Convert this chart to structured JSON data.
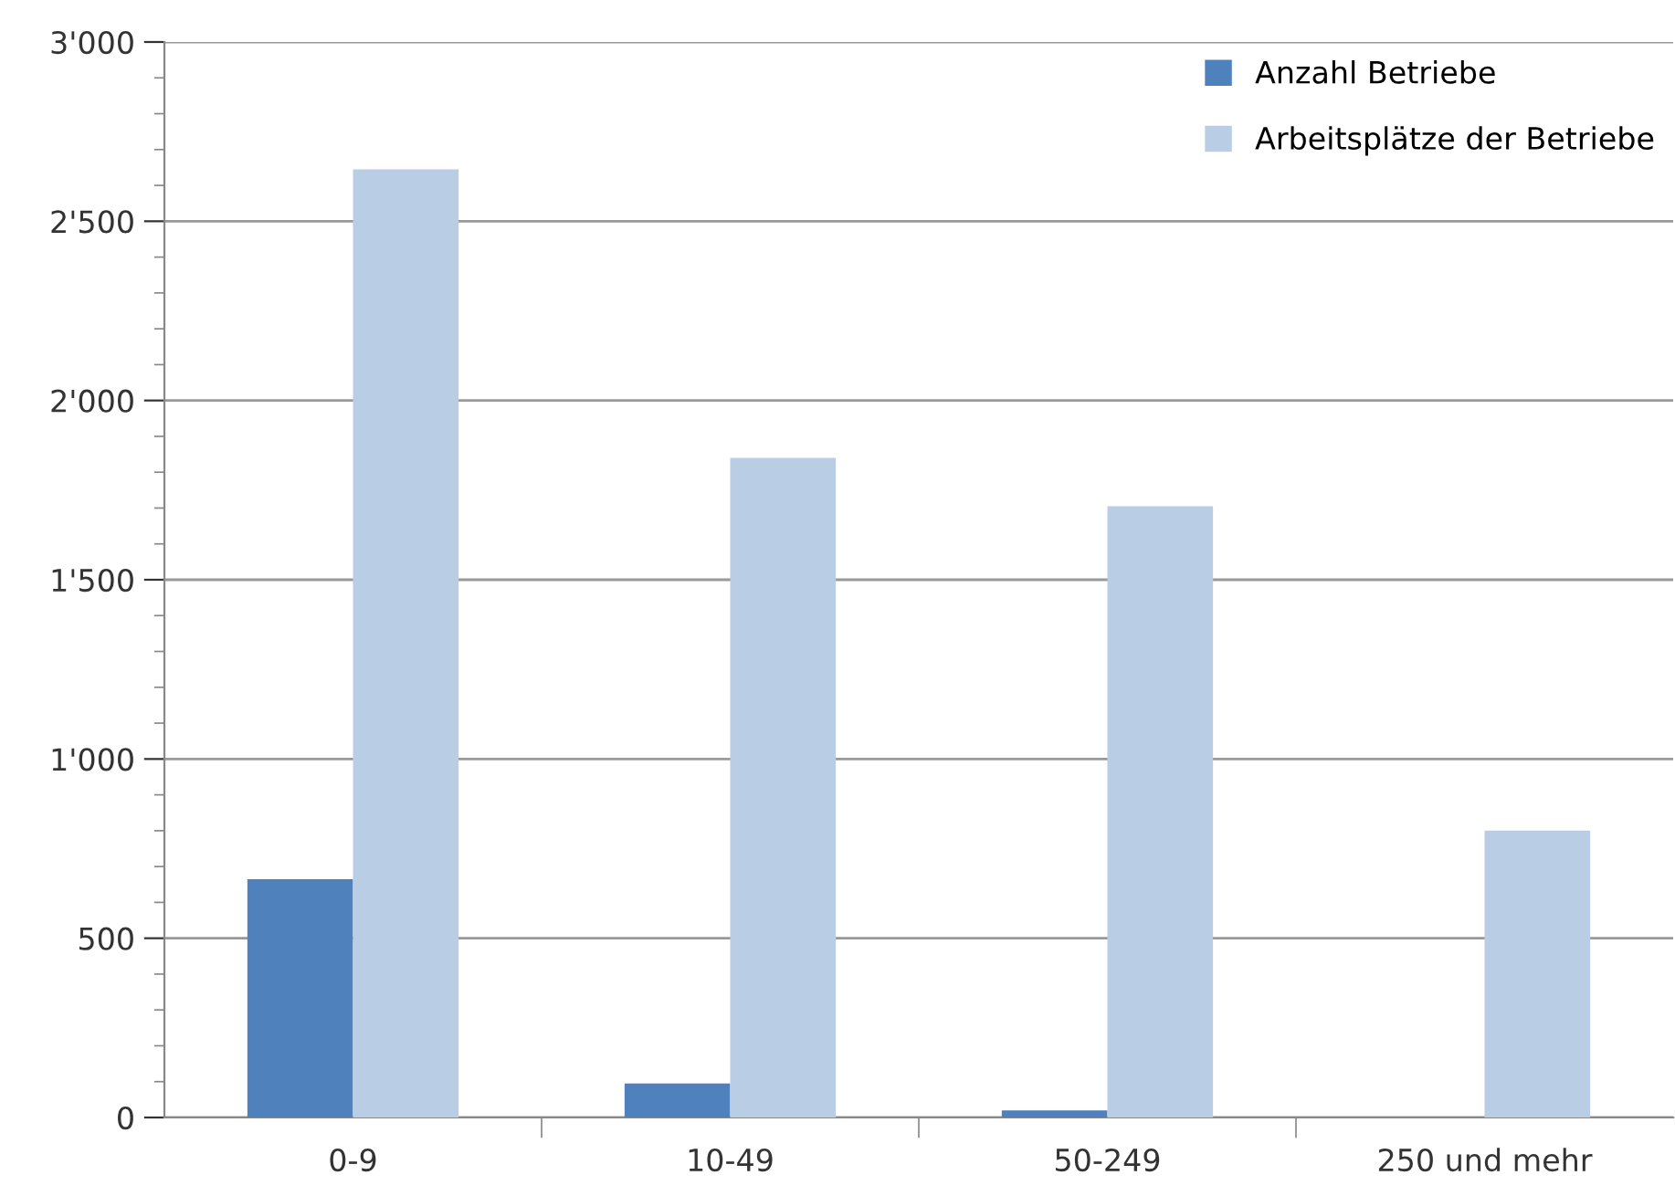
{
  "chart_data": {
    "type": "bar",
    "categories": [
      "0-9",
      "10-49",
      "50-249",
      "250 und mehr"
    ],
    "series": [
      {
        "name": "Anzahl Betriebe",
        "color": "#4f81bd",
        "values": [
          665,
          95,
          20,
          null
        ]
      },
      {
        "name": "Arbeitsplätze der Betriebe",
        "color": "#b9cde5",
        "values": [
          2645,
          1840,
          1705,
          800
        ]
      }
    ],
    "ylim": [
      0,
      3000
    ],
    "yticks": [
      {
        "value": 0,
        "label": "0"
      },
      {
        "value": 100,
        "label": null
      },
      {
        "value": 200,
        "label": null
      },
      {
        "value": 300,
        "label": null
      },
      {
        "value": 400,
        "label": null
      },
      {
        "value": 500,
        "label": "500"
      },
      {
        "value": 600,
        "label": null
      },
      {
        "value": 700,
        "label": null
      },
      {
        "value": 800,
        "label": null
      },
      {
        "value": 900,
        "label": null
      },
      {
        "value": 1000,
        "label": "1'000"
      },
      {
        "value": 1100,
        "label": null
      },
      {
        "value": 1200,
        "label": null
      },
      {
        "value": 1300,
        "label": null
      },
      {
        "value": 1400,
        "label": null
      },
      {
        "value": 1500,
        "label": "1'500"
      },
      {
        "value": 1600,
        "label": null
      },
      {
        "value": 1700,
        "label": null
      },
      {
        "value": 1800,
        "label": null
      },
      {
        "value": 1900,
        "label": null
      },
      {
        "value": 2000,
        "label": "2'000"
      },
      {
        "value": 2100,
        "label": null
      },
      {
        "value": 2200,
        "label": null
      },
      {
        "value": 2300,
        "label": null
      },
      {
        "value": 2400,
        "label": null
      },
      {
        "value": 2500,
        "label": "2'500"
      },
      {
        "value": 2600,
        "label": null
      },
      {
        "value": 2700,
        "label": null
      },
      {
        "value": 2800,
        "label": null
      },
      {
        "value": 2900,
        "label": null
      },
      {
        "value": 3000,
        "label": "3'000"
      }
    ],
    "grid": "y",
    "legend": "top right"
  }
}
